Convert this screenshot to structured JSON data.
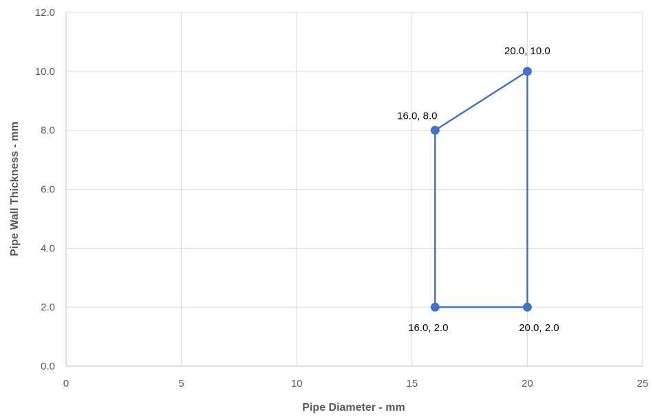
{
  "chart_data": {
    "type": "scatter",
    "xlabel": "Pipe Diameter - mm",
    "ylabel": "Pipe Wall Thickness - mm",
    "xlim": [
      0,
      25
    ],
    "ylim": [
      0,
      12
    ],
    "x_ticks": [
      "0",
      "5",
      "10",
      "15",
      "20",
      "25"
    ],
    "y_ticks": [
      "0.0",
      "2.0",
      "4.0",
      "6.0",
      "8.0",
      "10.0",
      "12.0"
    ],
    "grid": true,
    "line_color": "#4472C4",
    "series": [
      {
        "points": [
          {
            "x": 16,
            "y": 2,
            "label": "16.0, 2.0"
          },
          {
            "x": 16,
            "y": 8,
            "label": "16.0, 8.0"
          },
          {
            "x": 20,
            "y": 10,
            "label": "20.0, 10.0"
          },
          {
            "x": 20,
            "y": 2,
            "label": "20.0, 2.0"
          },
          {
            "x": 16,
            "y": 2
          }
        ]
      }
    ]
  }
}
